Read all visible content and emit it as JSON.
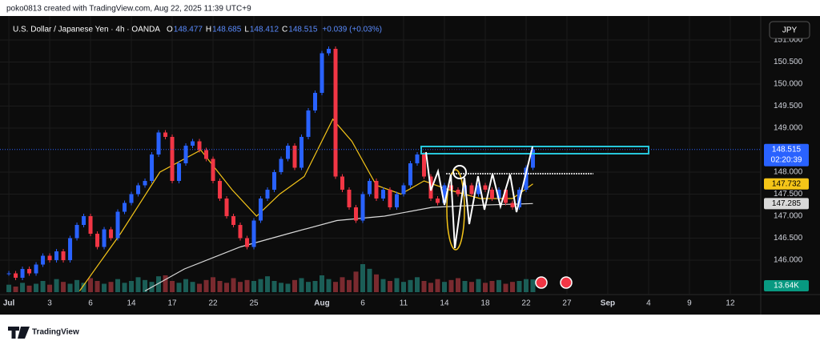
{
  "header": {
    "credit": "poko0813 created with TradingView.com, Aug 22, 2025 11:39 UTC+9"
  },
  "chart_data": {
    "type": "candlestick",
    "symbol": "U.S. Dollar / Japanese Yen · 4h · OANDA",
    "ohlc_legend": [
      {
        "key": "O",
        "value": 148.477
      },
      {
        "key": "H",
        "value": 148.685
      },
      {
        "key": "L",
        "value": 148.412
      },
      {
        "key": "C",
        "value": 148.515
      }
    ],
    "change": "+0.039 (+0.03%)",
    "currency": "JPY",
    "countdown": "02:20:39",
    "up_color": "#2962ff",
    "down_color": "#f23645",
    "x": [
      0,
      0.5,
      1,
      1.5,
      2,
      2.5,
      3,
      3.5,
      4,
      4.5,
      5,
      5.5,
      6,
      6.5,
      7,
      7.5,
      8,
      8.5,
      9,
      9.5,
      10,
      10.5,
      11,
      11.5,
      12,
      12.5,
      13,
      13.5,
      14,
      14.5,
      15,
      15.5,
      16,
      16.5,
      17,
      17.5,
      18,
      18.5,
      19,
      19.5,
      20,
      20.5,
      21,
      21.5,
      22,
      22.5,
      23,
      23.5,
      24,
      24.5,
      25,
      25.5,
      26,
      26.5,
      27,
      27.5,
      28,
      28.5,
      29,
      29.5,
      30,
      30.5,
      31,
      31.5,
      32,
      32.5,
      33,
      33.5,
      34,
      34.5,
      35,
      35.5,
      36,
      36.5,
      37,
      37.5,
      38,
      38.5
    ],
    "close": [
      145.7,
      145.6,
      145.8,
      145.7,
      145.9,
      146.1,
      146.0,
      146.2,
      146.0,
      146.5,
      146.8,
      147.0,
      146.6,
      146.3,
      146.7,
      146.5,
      147.1,
      147.3,
      147.5,
      147.7,
      147.8,
      148.4,
      148.9,
      148.8,
      147.8,
      148.2,
      148.6,
      148.7,
      148.5,
      148.3,
      147.8,
      147.4,
      147.0,
      146.8,
      146.5,
      146.3,
      146.9,
      147.4,
      147.6,
      148.0,
      148.3,
      148.6,
      148.1,
      148.8,
      149.4,
      149.8,
      150.7,
      150.8,
      147.9,
      147.6,
      147.2,
      146.9,
      147.5,
      147.8,
      147.4,
      147.6,
      147.2,
      147.5,
      147.7,
      148.2,
      148.4,
      147.9,
      147.4,
      147.3,
      147.7,
      147.6,
      147.5,
      147.7,
      147.5,
      147.7,
      147.6,
      147.4,
      147.6,
      147.3,
      147.2,
      147.6,
      148.1,
      148.515
    ],
    "volume": [
      8,
      6,
      10,
      7,
      9,
      12,
      8,
      14,
      11,
      9,
      13,
      10,
      15,
      12,
      9,
      11,
      14,
      10,
      12,
      16,
      13,
      11,
      17,
      18,
      12,
      10,
      14,
      11,
      9,
      13,
      16,
      12,
      10,
      15,
      11,
      13,
      12,
      14,
      17,
      12,
      10,
      9,
      13,
      15,
      11,
      12,
      18,
      14,
      11,
      16,
      13,
      22,
      30,
      25,
      19,
      14,
      12,
      15,
      11,
      13,
      16,
      12,
      10,
      14,
      11,
      13,
      15,
      12,
      11,
      14,
      10,
      12,
      13,
      9,
      11,
      12,
      14,
      13.64
    ],
    "volume_label": "13.64K",
    "series": [
      {
        "color": "#f5c518",
        "label_bg": "#f5c518",
        "x": [
          5.2,
          8.2,
          11.1,
          14.1,
          16.4,
          18.2,
          19.9,
          21.7,
          23.8,
          25.2,
          27,
          28.8,
          30.5,
          32.3,
          34.6,
          37,
          38.5
        ],
        "values": [
          145.3,
          146.6,
          148.0,
          148.5,
          147.6,
          147.0,
          147.5,
          147.9,
          149.2,
          148.7,
          147.7,
          147.5,
          147.8,
          147.6,
          147.4,
          147.4,
          147.732
        ]
      },
      {
        "color": "#d9d9d9",
        "label_bg": "#d9d9d9",
        "x": [
          10,
          12.9,
          17,
          20.5,
          24.1,
          27.6,
          31.1,
          34.6,
          38.5
        ],
        "values": [
          145.3,
          145.8,
          146.3,
          146.6,
          146.9,
          147.0,
          147.2,
          147.25,
          147.285
        ]
      }
    ],
    "xlim": [
      -0.18,
      54.65
    ],
    "xticks": [
      {
        "value": 0,
        "label": "Jul"
      },
      3,
      6,
      {
        "value": 9,
        "label": "14"
      },
      {
        "value": 12,
        "label": "17"
      },
      {
        "value": 15,
        "label": "22"
      },
      {
        "value": 18,
        "label": "25"
      },
      {
        "value": 23,
        "label": "Aug"
      },
      {
        "value": 26,
        "label": "6"
      },
      {
        "value": 29,
        "label": "11"
      },
      {
        "value": 32,
        "label": "14"
      },
      {
        "value": 35,
        "label": "18"
      },
      {
        "value": 38,
        "label": "22"
      },
      {
        "value": 41,
        "label": "27"
      },
      {
        "value": 44,
        "label": "Sep"
      },
      {
        "value": 47,
        "label": "4"
      },
      {
        "value": 50,
        "label": "9"
      },
      {
        "value": 53,
        "label": "12"
      }
    ],
    "ylim": [
      145.273,
      151.455
    ],
    "yticks": [
      {
        "value": 146,
        "label": "146.000"
      },
      {
        "value": 146.5,
        "label": "146.500"
      },
      {
        "value": 147,
        "label": "147.000"
      },
      {
        "value": 147.5,
        "label": "147.500"
      },
      {
        "value": 148,
        "label": "148.000"
      },
      {
        "value": 149,
        "label": "149.000"
      },
      {
        "value": 149.5,
        "label": "149.500"
      },
      {
        "value": 150,
        "label": "150.000"
      },
      {
        "value": 150.5,
        "label": "150.500"
      },
      {
        "value": 151,
        "label": "151.000"
      }
    ],
    "grid": true
  },
  "footer": {
    "brand": "TradingView"
  }
}
